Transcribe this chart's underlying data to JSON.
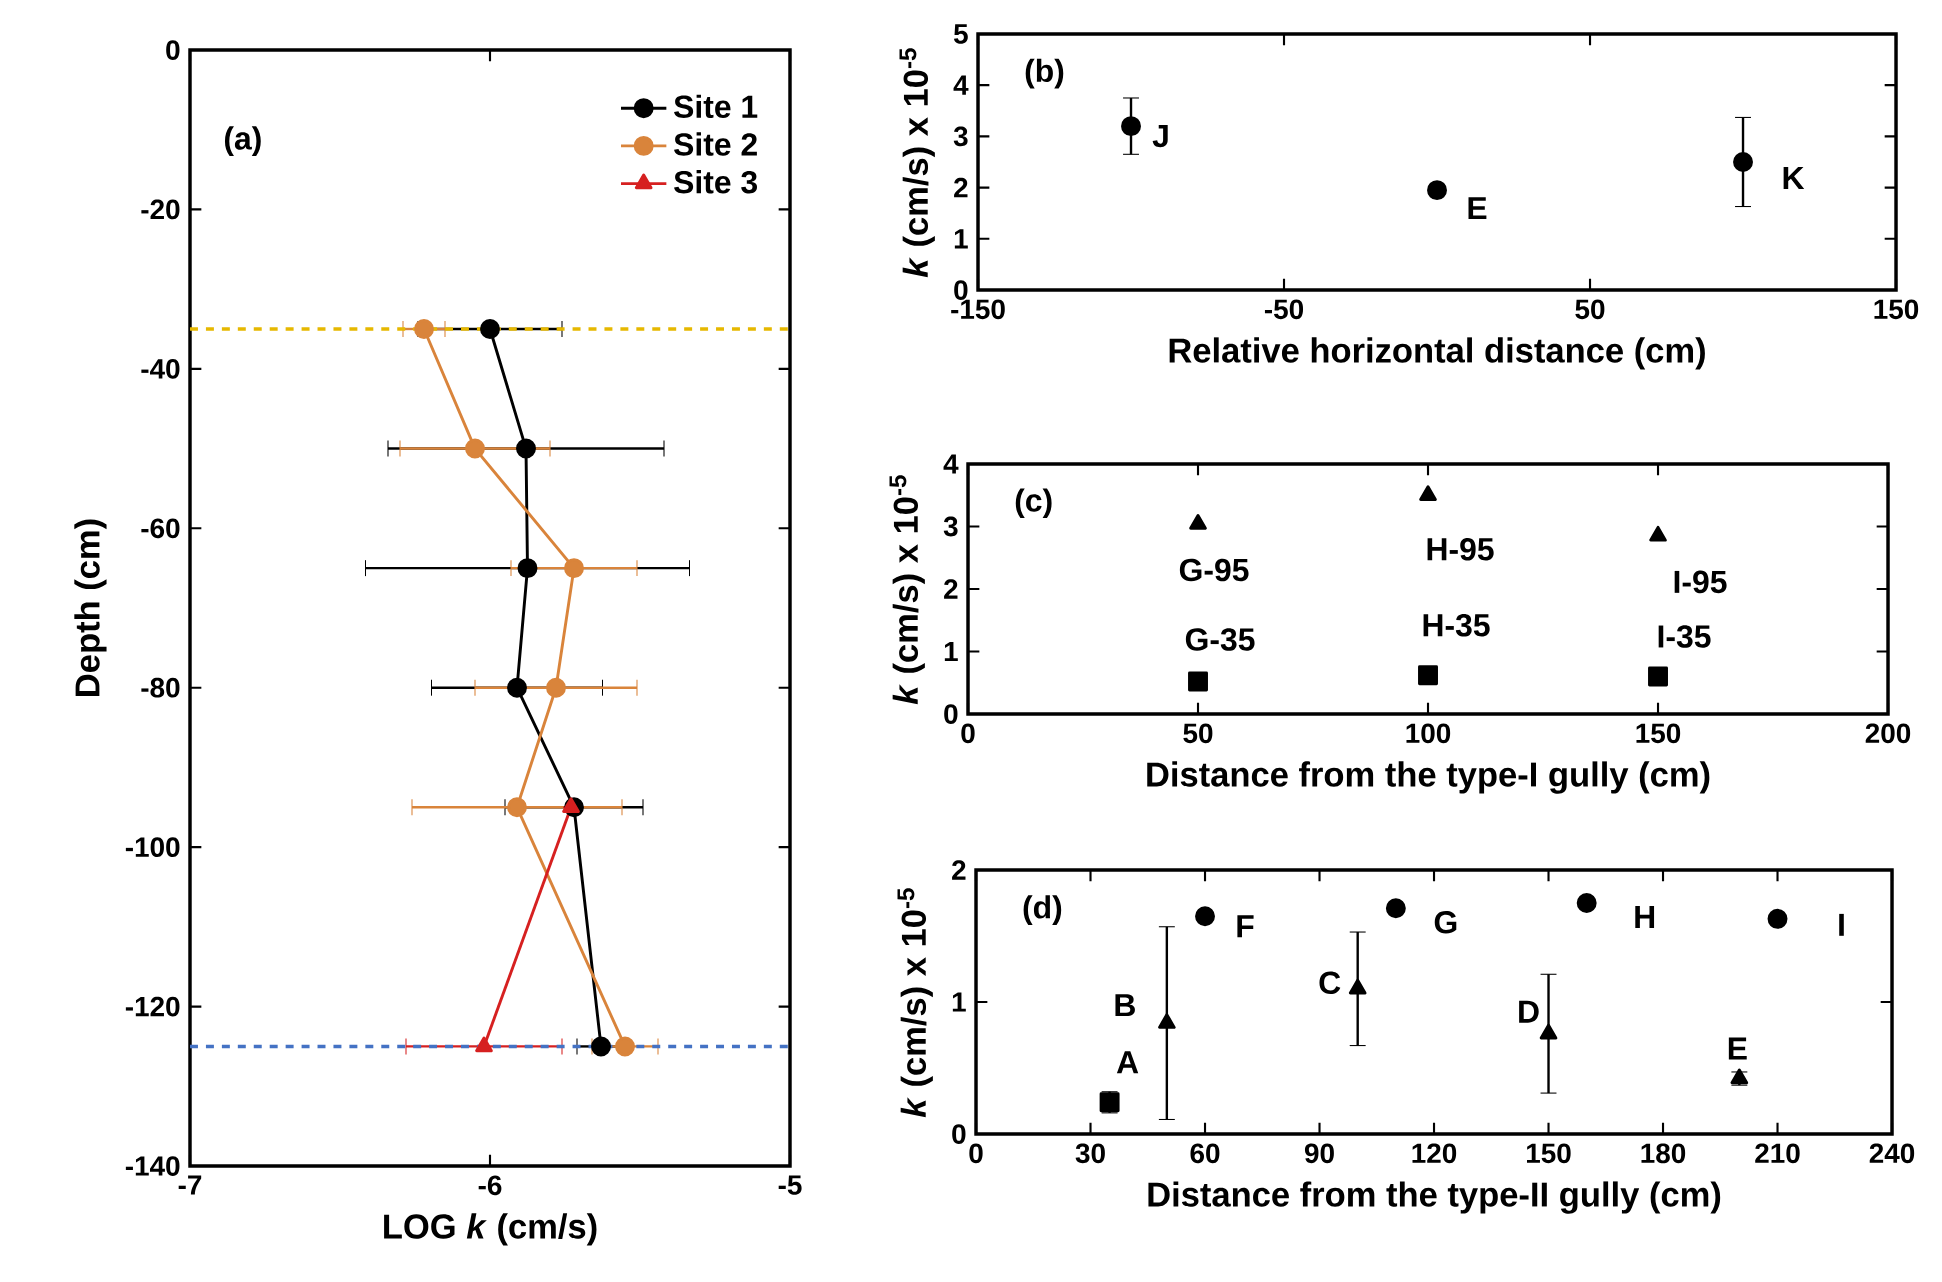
{
  "chart_data": [
    {
      "type": "line",
      "xlabel": "LOG *k* (cm/s)",
      "ylabel": "Depth (cm)",
      "xlim": [
        -7,
        -5
      ],
      "xticks": [
        -7,
        -6,
        -5
      ],
      "ylim": [
        -140,
        0
      ],
      "yticks": [
        -140,
        -120,
        -100,
        -80,
        -60,
        -40,
        -20,
        0
      ],
      "legend": "top right",
      "annotations": [
        "(a)"
      ],
      "series": [
        {
          "name": "Site 1",
          "color": "#000000",
          "marker": "circle",
          "x": [
            -6.0,
            -5.88,
            -5.875,
            -5.91,
            -5.72,
            -5.63
          ],
          "values": [
            -35,
            -50,
            -65,
            -80,
            -95,
            -125
          ],
          "xerrors": [
            0.24,
            0.46,
            0.54,
            0.285,
            0.23,
            0.08
          ]
        },
        {
          "name": "Site 2",
          "color": "#d9843b",
          "marker": "circle",
          "x": [
            -6.22,
            -6.05,
            -5.72,
            -5.78,
            -5.91,
            -5.55
          ],
          "values": [
            -35,
            -50,
            -65,
            -80,
            -95,
            -125
          ],
          "xerrors": [
            0.07,
            0.25,
            0.21,
            0.27,
            0.35,
            0.11
          ]
        },
        {
          "name": "Site 3",
          "color": "#d62020",
          "marker": "triangle",
          "x": [
            -5.73,
            -6.02
          ],
          "values": [
            -95,
            -125
          ],
          "xerrors": [
            null,
            0.26
          ]
        }
      ],
      "ref_lines": [
        {
          "axis": "y",
          "value": -35,
          "color": "#e6b800",
          "line_style": "dashed"
        },
        {
          "axis": "y",
          "value": -125,
          "color": "#4472c4",
          "line_style": "dashed"
        }
      ]
    },
    {
      "type": "scatter",
      "xlabel": "Relative horizontal distance (cm)",
      "ylabel": "*k* (cm/s) x 10$^{-5}$",
      "xlim": [
        -150,
        150
      ],
      "xticks": [
        -150,
        -50,
        50,
        150
      ],
      "ylim": [
        0,
        5
      ],
      "yticks": [
        0,
        1,
        2,
        3,
        4,
        5
      ],
      "annotations": [
        "(b)",
        {
          "text": "J",
          "x": -100,
          "y": 3.2
        },
        {
          "text": "E",
          "x": 0,
          "y": 1.95
        },
        {
          "text": "K",
          "x": 100,
          "y": 2.5
        }
      ],
      "series": [
        {
          "color": "#000000",
          "marker": "circle",
          "x": [
            -100,
            0,
            100
          ],
          "values": [
            3.2,
            1.95,
            2.5
          ],
          "errors": [
            0.55,
            0.1,
            0.87
          ]
        }
      ]
    },
    {
      "type": "scatter",
      "xlabel": "Distance from the type-I gully (cm)",
      "ylabel": "*k* (cm/s) x 10$^{-5}$",
      "xlim": [
        0,
        200
      ],
      "xticks": [
        0,
        50,
        100,
        150,
        200
      ],
      "ylim": [
        0,
        4
      ],
      "yticks": [
        0,
        1,
        2,
        3,
        4
      ],
      "annotations": [
        "(c)",
        {
          "text": "G-95",
          "x": 50,
          "y": 3.04
        },
        {
          "text": "H-95",
          "x": 100,
          "y": 3.5
        },
        {
          "text": "I-95",
          "x": 150,
          "y": 2.85
        },
        {
          "text": "G-35",
          "x": 50,
          "y": 0.52
        },
        {
          "text": "H-35",
          "x": 100,
          "y": 0.62
        },
        {
          "text": "I-35",
          "x": 150,
          "y": 0.6
        }
      ],
      "series": [
        {
          "color": "#000000",
          "marker": "triangle",
          "x": [
            50,
            100,
            150
          ],
          "values": [
            3.04,
            3.5,
            2.85
          ]
        },
        {
          "color": "#000000",
          "marker": "square",
          "x": [
            50,
            100,
            150
          ],
          "values": [
            0.52,
            0.62,
            0.6
          ],
          "errors": [
            null,
            0.1,
            null
          ]
        }
      ]
    },
    {
      "type": "scatter",
      "xlabel": "Distance from the type-II gully (cm)",
      "ylabel": "*k* (cm/s) x 10$^{-5}$",
      "xlim": [
        0,
        240
      ],
      "xticks": [
        0,
        30,
        60,
        90,
        120,
        150,
        180,
        210,
        240
      ],
      "ylim": [
        0,
        2
      ],
      "yticks": [
        0,
        1,
        2
      ],
      "annotations": [
        "(d)",
        {
          "text": "F",
          "x": 60,
          "y": 1.65
        },
        {
          "text": "G",
          "x": 110,
          "y": 1.71
        },
        {
          "text": "H",
          "x": 160,
          "y": 1.75
        },
        {
          "text": "I",
          "x": 210,
          "y": 1.63
        },
        {
          "text": "A",
          "x": 35,
          "y": 0.24
        },
        {
          "text": "B",
          "x": 50,
          "y": 0.84
        },
        {
          "text": "C",
          "x": 100,
          "y": 1.1
        },
        {
          "text": "D",
          "x": 150,
          "y": 0.76
        },
        {
          "text": "E",
          "x": 200,
          "y": 0.42
        }
      ],
      "series": [
        {
          "color": "#000000",
          "marker": "circle",
          "x": [
            60,
            110,
            160,
            210
          ],
          "values": [
            1.65,
            1.71,
            1.75,
            1.63
          ]
        },
        {
          "color": "#000000",
          "marker": "square",
          "x": [
            35
          ],
          "values": [
            0.24
          ],
          "errors": [
            0.08
          ]
        },
        {
          "color": "#000000",
          "marker": "triangle",
          "x": [
            50,
            100,
            150,
            200
          ],
          "values": [
            0.84,
            1.1,
            0.76,
            0.42
          ],
          "errors": [
            0.73,
            0.43,
            0.45,
            0.05
          ]
        }
      ]
    }
  ]
}
